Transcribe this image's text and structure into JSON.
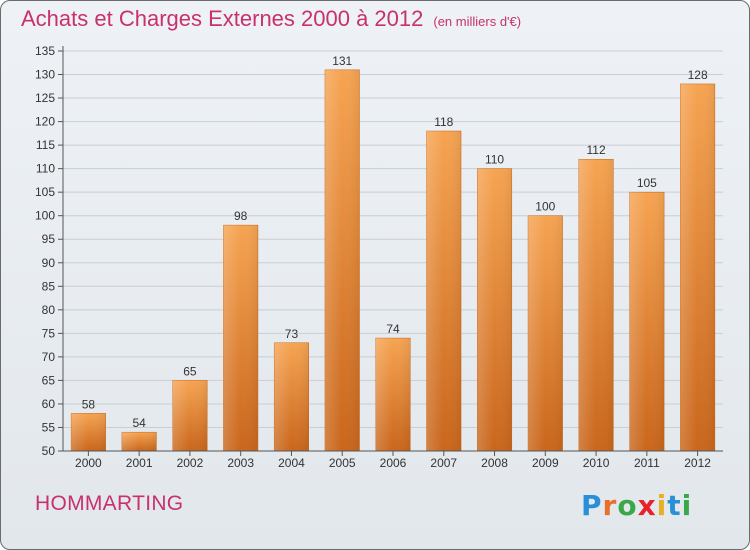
{
  "header": {
    "title": "Achats et Charges Externes 2000 à 2012",
    "unit": "(en milliers d'€)"
  },
  "footer": {
    "commune": "HOMMARTING",
    "logo_letters": [
      {
        "ch": "P",
        "color": "#2a8fd6"
      },
      {
        "ch": "r",
        "color": "#e8702a"
      },
      {
        "ch": "o",
        "color": "#3aa84a"
      },
      {
        "ch": "x",
        "color": "#e8222a"
      },
      {
        "ch": "i",
        "color": "#e8b020"
      },
      {
        "ch": "t",
        "color": "#2a8fd6"
      },
      {
        "ch": "i",
        "color": "#3aa84a"
      }
    ]
  },
  "colors": {
    "title": "#c8316e",
    "bar_light": "#f6a452",
    "bar_dark": "#c9661c"
  },
  "chart_data": {
    "type": "bar",
    "title": "Achats et Charges Externes 2000 à 2012",
    "categories": [
      "2000",
      "2001",
      "2002",
      "2003",
      "2004",
      "2005",
      "2006",
      "2007",
      "2008",
      "2009",
      "2010",
      "2011",
      "2012"
    ],
    "values": [
      58,
      54,
      65,
      98,
      73,
      131,
      74,
      118,
      110,
      100,
      112,
      105,
      128
    ],
    "ylim": [
      50,
      135
    ],
    "yticks": [
      50,
      55,
      60,
      65,
      70,
      75,
      80,
      85,
      90,
      95,
      100,
      105,
      110,
      115,
      120,
      125,
      130,
      135
    ],
    "grid": true
  }
}
